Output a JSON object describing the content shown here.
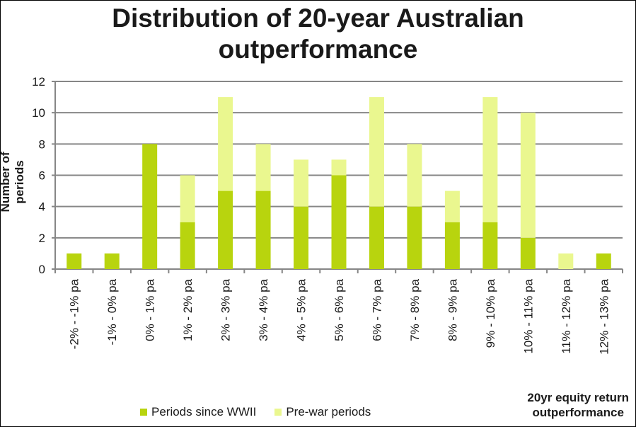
{
  "chart_data": {
    "type": "bar",
    "stacked": true,
    "title": "Distribution of 20-year Australian outperformance",
    "title_lines": [
      "Distribution of 20-year Australian",
      "outperformance"
    ],
    "xlabel_lines": [
      "20yr equity return",
      "outperformance"
    ],
    "ylabel": "Number of periods",
    "ylim": [
      0,
      12
    ],
    "yticks": [
      0,
      2,
      4,
      6,
      8,
      10,
      12
    ],
    "grid": true,
    "legend_position": "bottom",
    "categories": [
      "-2% - -1% pa",
      "-1% - 0% pa",
      "0% - 1% pa",
      "1% - 2% pa",
      "2% - 3% pa",
      "3% - 4% pa",
      "4% - 5% pa",
      "5% - 6% pa",
      "6% - 7% pa",
      "7% - 8% pa",
      "8% - 9% pa",
      "9% - 10% pa",
      "10% - 11% pa",
      "11% - 12% pa",
      "12% - 13% pa"
    ],
    "series": [
      {
        "name": "Periods since WWII",
        "color": "#b8d40e",
        "values": [
          1,
          1,
          8,
          3,
          5,
          5,
          4,
          6,
          4,
          4,
          3,
          3,
          2,
          0,
          1
        ]
      },
      {
        "name": "Pre-war periods",
        "color": "#eaf78f",
        "values": [
          0,
          0,
          0,
          3,
          6,
          3,
          3,
          1,
          7,
          4,
          2,
          8,
          8,
          1,
          0
        ]
      }
    ]
  }
}
